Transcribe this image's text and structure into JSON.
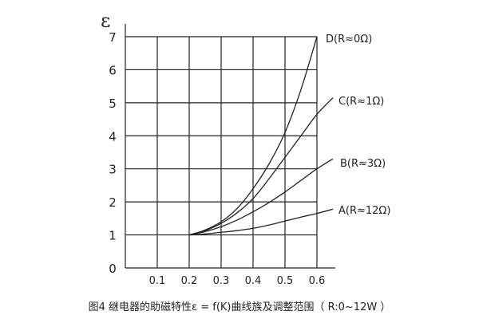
{
  "chart_data": {
    "type": "line",
    "title": "",
    "xlabel": "",
    "ylabel": "ε",
    "xlim": [
      0,
      0.66
    ],
    "ylim": [
      0,
      7
    ],
    "grid": true,
    "x_ticks": [
      "0.1",
      "0.2",
      "0.3",
      "0.4",
      "0.5",
      "0.6"
    ],
    "y_ticks": [
      "0",
      "1",
      "2",
      "3",
      "4",
      "5",
      "6",
      "7"
    ],
    "series": [
      {
        "name": "D(R≈0Ω)",
        "x": [
          0.2,
          0.25,
          0.3,
          0.35,
          0.4,
          0.45,
          0.5,
          0.55,
          0.6
        ],
        "y": [
          1,
          1.15,
          1.4,
          1.8,
          2.4,
          3.15,
          4.1,
          5.4,
          7
        ]
      },
      {
        "name": "C(R≈1Ω)",
        "x": [
          0.2,
          0.25,
          0.3,
          0.35,
          0.4,
          0.45,
          0.5,
          0.55,
          0.6,
          0.65
        ],
        "y": [
          1,
          1.13,
          1.35,
          1.67,
          2.1,
          2.7,
          3.35,
          4.0,
          4.65,
          5.15
        ]
      },
      {
        "name": "B(R≈3Ω)",
        "x": [
          0.2,
          0.25,
          0.3,
          0.35,
          0.4,
          0.45,
          0.5,
          0.55,
          0.6,
          0.65
        ],
        "y": [
          1,
          1.1,
          1.25,
          1.45,
          1.7,
          1.98,
          2.3,
          2.65,
          3.0,
          3.3
        ]
      },
      {
        "name": "A(R≈12Ω)",
        "x": [
          0.2,
          0.25,
          0.3,
          0.35,
          0.4,
          0.45,
          0.5,
          0.55,
          0.6,
          0.65
        ],
        "y": [
          1,
          1.03,
          1.08,
          1.13,
          1.2,
          1.3,
          1.42,
          1.54,
          1.65,
          1.78
        ]
      }
    ]
  },
  "caption": "图4 继电器的助磁特性ε = f(K)曲线族及调整范围（ R:0~12W ）"
}
